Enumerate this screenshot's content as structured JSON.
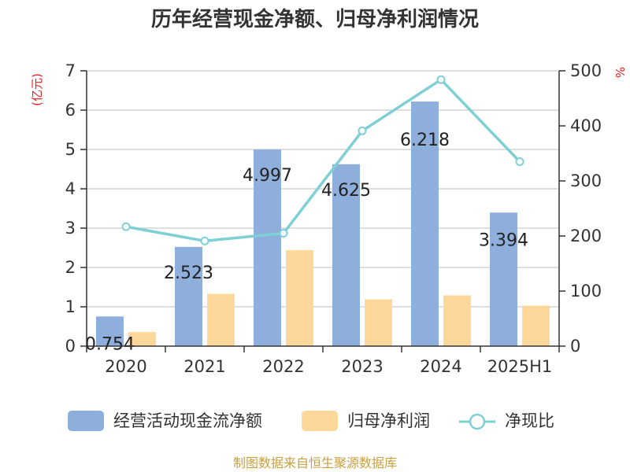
{
  "chart_data": {
    "type": "bar",
    "title": "历年经营现金净额、归母净利润情况",
    "categories": [
      "2020",
      "2021",
      "2022",
      "2023",
      "2024",
      "2025H1"
    ],
    "y_left": {
      "unit": "(亿元)",
      "ylim": [
        0,
        7
      ],
      "ticks": [
        0,
        1,
        2,
        3,
        4,
        5,
        6,
        7
      ]
    },
    "y_right": {
      "unit": "%",
      "ylim": [
        0,
        500
      ],
      "ticks": [
        0,
        100,
        200,
        300,
        400,
        500
      ]
    },
    "series": [
      {
        "name": "经营活动现金流净额",
        "type": "bar",
        "axis": "left",
        "color": "#8eaedc",
        "values": [
          0.754,
          2.523,
          4.997,
          4.625,
          6.218,
          3.394
        ],
        "labels": [
          "0.754",
          "2.523",
          "4.997",
          "4.625",
          "6.218",
          "3.394"
        ]
      },
      {
        "name": "归母净利润",
        "type": "bar",
        "axis": "left",
        "color": "#fdd89a",
        "values": [
          0.36,
          1.33,
          2.44,
          1.19,
          1.29,
          1.03
        ]
      },
      {
        "name": "净现比",
        "type": "line",
        "axis": "right",
        "color": "#7fd0d4",
        "values": [
          217,
          191,
          205,
          391,
          484,
          335
        ]
      }
    ],
    "grid": true,
    "legend_position": "bottom"
  },
  "source": "制图数据来自恒生聚源数据库",
  "colors": {
    "axis": "#333333",
    "grid": "#cccccc",
    "unit": "#e02020"
  }
}
